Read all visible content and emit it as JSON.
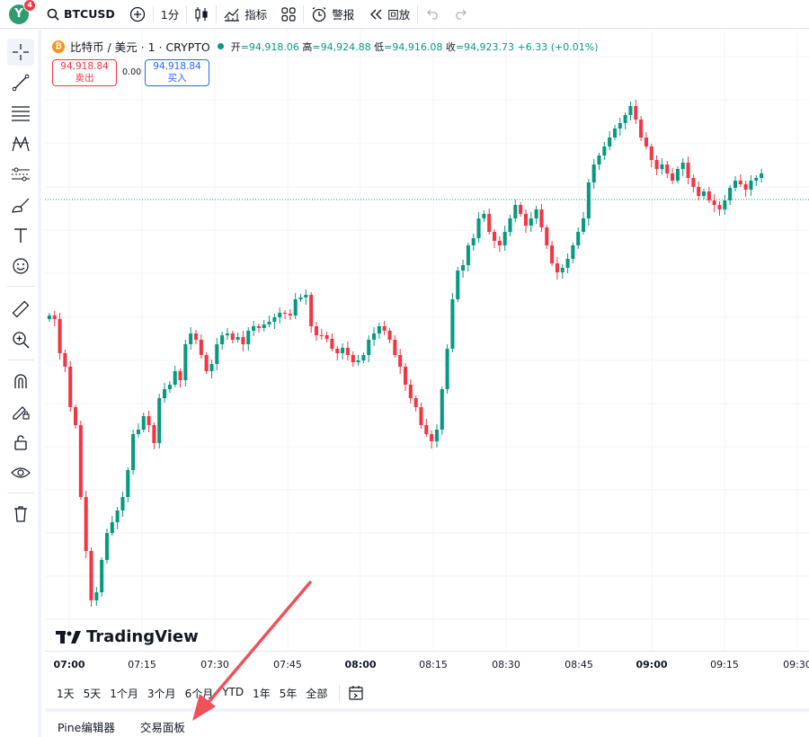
{
  "toolbar": {
    "avatar_letter": "Y",
    "notification_count": "4",
    "symbol": "BTCUSD",
    "interval": "1分",
    "indicators_label": "指标",
    "alerts_label": "警报",
    "replay_label": "回放"
  },
  "legend": {
    "coin_letter": "₿",
    "title": "比特币 / 美元 · 1 · CRYPTO",
    "open_label": "开",
    "open": "=94,918.06",
    "high_label": "高",
    "high": "=94,924.88",
    "low_label": "低",
    "low": "=94,916.08",
    "close_label": "收",
    "close": "=94,923.73",
    "change": "+6.33 (+0.01%)"
  },
  "trade": {
    "sell_price": "94,918.84",
    "sell_label": "卖出",
    "spread": "0.00",
    "buy_price": "94,918.84",
    "buy_label": "买入"
  },
  "watermark": "TradingView",
  "xaxis_ticks": [
    {
      "label": "07:00",
      "bold": true
    },
    {
      "label": "07:15",
      "bold": false
    },
    {
      "label": "07:30",
      "bold": false
    },
    {
      "label": "07:45",
      "bold": false
    },
    {
      "label": "08:00",
      "bold": true
    },
    {
      "label": "08:15",
      "bold": false
    },
    {
      "label": "08:30",
      "bold": false
    },
    {
      "label": "08:45",
      "bold": false
    },
    {
      "label": "09:00",
      "bold": true
    },
    {
      "label": "09:15",
      "bold": false
    },
    {
      "label": "09:30",
      "bold": false
    }
  ],
  "ranges": [
    "1天",
    "5天",
    "1个月",
    "3个月",
    "6个月",
    "YTD",
    "1年",
    "5年",
    "全部"
  ],
  "bottom_tabs": [
    "Pine编辑器",
    "交易面板"
  ],
  "colors": {
    "up": "#089981",
    "down": "#f23645",
    "accent": "#2962ff",
    "annotation_arrow": "#f0505a"
  },
  "left_tools": [
    "crosshair-icon",
    "trend-line-icon",
    "fib-icon",
    "pattern-icon",
    "forecast-icon",
    "brush-icon",
    "text-icon",
    "emoji-icon",
    "ruler-icon",
    "zoom-in-icon",
    "magnet-icon",
    "lock-drawing-icon",
    "lock-icon",
    "eye-icon",
    "trash-icon"
  ]
}
